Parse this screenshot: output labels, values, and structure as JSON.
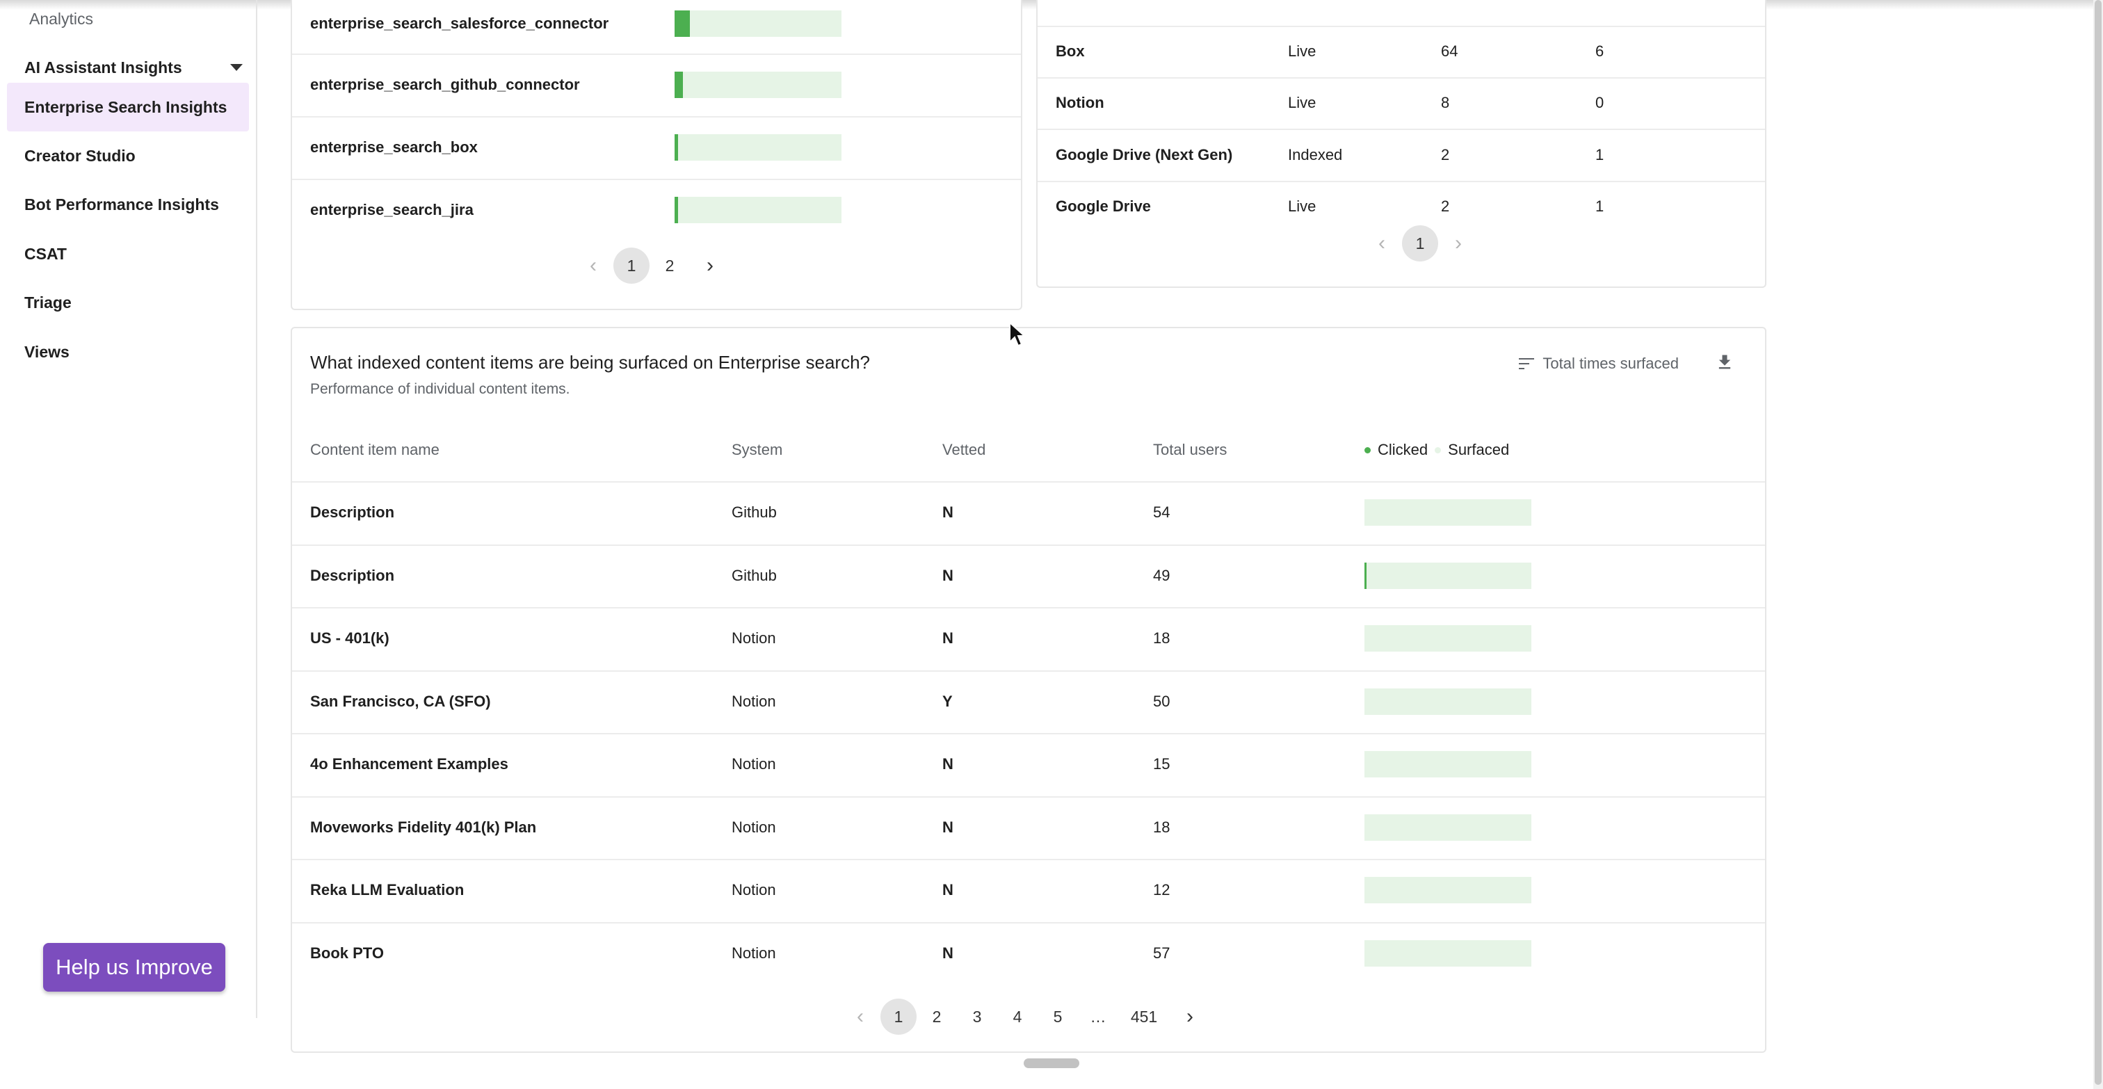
{
  "sidebar": {
    "section": "Analytics",
    "group_label": "AI Assistant Insights",
    "items": [
      {
        "label": "Enterprise Search Insights",
        "active": true
      },
      {
        "label": "Creator Studio"
      },
      {
        "label": "Bot Performance Insights"
      },
      {
        "label": "CSAT"
      },
      {
        "label": "Triage"
      },
      {
        "label": "Views"
      }
    ],
    "help_button": "Help us Improve"
  },
  "connectors_panel": {
    "rows": [
      {
        "name": "enterprise_search_salesforce_connector",
        "share": 0.09
      },
      {
        "name": "enterprise_search_github_connector",
        "share": 0.05
      },
      {
        "name": "enterprise_search_box",
        "share": 0.02
      },
      {
        "name": "enterprise_search_jira",
        "share": 0.02
      }
    ],
    "pagination": {
      "pages": [
        "1",
        "2"
      ],
      "current": "1"
    }
  },
  "systems_panel": {
    "rows": [
      {
        "system": "Box",
        "status": "Live",
        "col3": "64",
        "col4": "6"
      },
      {
        "system": "Notion",
        "status": "Live",
        "col3": "8",
        "col4": "0"
      },
      {
        "system": "Google Drive (Next Gen)",
        "status": "Indexed",
        "col3": "2",
        "col4": "1"
      },
      {
        "system": "Google Drive",
        "status": "Live",
        "col3": "2",
        "col4": "1"
      }
    ],
    "pagination": {
      "pages": [
        "1"
      ],
      "current": "1"
    }
  },
  "content_panel": {
    "title": "What indexed content items are being surfaced on Enterprise search?",
    "subtitle": "Performance of individual content items.",
    "sort_label": "Total times surfaced",
    "columns": {
      "name": "Content item name",
      "system": "System",
      "vetted": "Vetted",
      "users": "Total users",
      "legend_clicked": "Clicked",
      "legend_surfaced": "Surfaced"
    },
    "colors": {
      "clicked": "#4caf50",
      "surfaced": "#e6f4e6"
    },
    "rows": [
      {
        "name": "Description",
        "system": "Github",
        "vetted": "N",
        "users": "54",
        "clicked_share": 0.0
      },
      {
        "name": "Description",
        "system": "Github",
        "vetted": "N",
        "users": "49",
        "clicked_share": 0.01
      },
      {
        "name": "US - 401(k)",
        "system": "Notion",
        "vetted": "N",
        "users": "18",
        "clicked_share": 0.0
      },
      {
        "name": "San Francisco, CA (SFO)",
        "system": "Notion",
        "vetted": "Y",
        "users": "50",
        "clicked_share": 0.0
      },
      {
        "name": "4o Enhancement Examples",
        "system": "Notion",
        "vetted": "N",
        "users": "15",
        "clicked_share": 0.0
      },
      {
        "name": "Moveworks Fidelity 401(k) Plan",
        "system": "Notion",
        "vetted": "N",
        "users": "18",
        "clicked_share": 0.0
      },
      {
        "name": "Reka LLM Evaluation",
        "system": "Notion",
        "vetted": "N",
        "users": "12",
        "clicked_share": 0.0
      },
      {
        "name": "Book PTO",
        "system": "Notion",
        "vetted": "N",
        "users": "57",
        "clicked_share": 0.0
      }
    ],
    "pagination": {
      "pages": [
        "1",
        "2",
        "3",
        "4",
        "5",
        "…",
        "451"
      ],
      "current": "1"
    }
  }
}
